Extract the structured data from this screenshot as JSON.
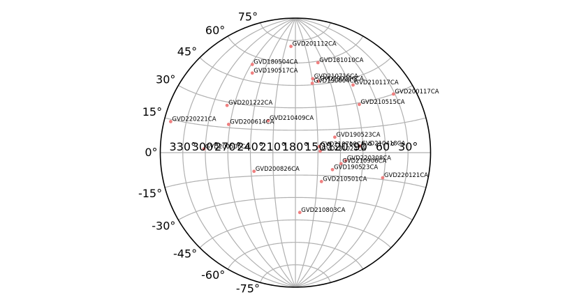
{
  "chart_data": {
    "type": "scatter",
    "projection": "aitoff",
    "lon_direction": "east-left",
    "xlim": [
      0,
      360
    ],
    "ylim": [
      -90,
      90
    ],
    "grid": true,
    "marker_color": "#f08080",
    "lon_tick_labels": [
      "330°",
      "300°",
      "270°",
      "240°",
      "210°",
      "180°",
      "150°",
      "120°",
      "90°",
      "60°",
      "30°"
    ],
    "lat_tick_labels": [
      "75°",
      "60°",
      "45°",
      "30°",
      "15°",
      "0°",
      "-15°",
      "-30°",
      "-45°",
      "-60°",
      "-75°"
    ],
    "points": [
      {
        "label": "GVD201112CA",
        "lon": 194,
        "lat": 71
      },
      {
        "label": "GVD180504CA",
        "lon": 268,
        "lat": 55
      },
      {
        "label": "GVD181010CA",
        "lon": 131,
        "lat": 59
      },
      {
        "label": "GVD190517CA",
        "lon": 260,
        "lat": 50
      },
      {
        "label": "GVD210716CA",
        "lon": 149,
        "lat": 49
      },
      {
        "label": "GVD190216CA",
        "lon": 140,
        "lat": 47
      },
      {
        "label": "GVD190604CA",
        "lon": 151,
        "lat": 46
      },
      {
        "label": "GVD210117CA",
        "lon": 85,
        "lat": 41
      },
      {
        "label": "GVD200117CA",
        "lon": 32,
        "lat": 30
      },
      {
        "label": "GVD201222CA",
        "lon": 280,
        "lat": 28
      },
      {
        "label": "GVD210515CA",
        "lon": 86,
        "lat": 29
      },
      {
        "label": "GVD210409CA",
        "lon": 218,
        "lat": 21
      },
      {
        "label": "GVD200614CA",
        "lon": 272,
        "lat": 17
      },
      {
        "label": "GVD220221CA",
        "lon": 351,
        "lat": 14
      },
      {
        "label": "GVD190523CA",
        "lon": 127,
        "lat": 10
      },
      {
        "label": "GVD210418CA",
        "lon": 94,
        "lat": 4
      },
      {
        "label": "GVD210710CA",
        "lon": 148,
        "lat": 4
      },
      {
        "label": "GVD200506CA",
        "lon": 302,
        "lat": 2
      },
      {
        "label": "GVD181024CA",
        "lon": 147,
        "lat": 1
      },
      {
        "label": "GVD220308CA",
        "lon": 113,
        "lat": -5
      },
      {
        "label": "GVD210906CA",
        "lon": 119,
        "lat": -7
      },
      {
        "label": "GVD190523CA",
        "lon": 130,
        "lat": -11
      },
      {
        "label": "GVD200826CA",
        "lon": 236,
        "lat": -12
      },
      {
        "label": "GVD220121CA",
        "lon": 61,
        "lat": -14
      },
      {
        "label": "GVD210501CA",
        "lon": 144,
        "lat": -19
      },
      {
        "label": "GVD210803CA",
        "lon": 173,
        "lat": -40
      }
    ]
  }
}
